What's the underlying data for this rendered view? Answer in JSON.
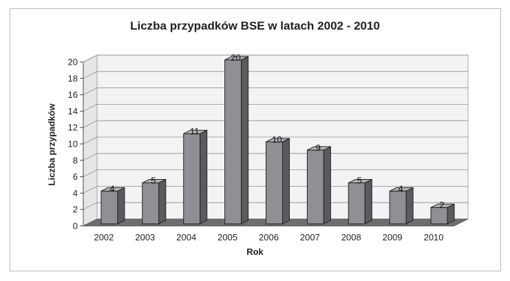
{
  "chart_data": {
    "type": "bar",
    "title": "Liczba przypadków BSE w latach 2002 - 2010",
    "xlabel": "Rok",
    "ylabel": "Liczba przypadków",
    "categories": [
      "2002",
      "2003",
      "2004",
      "2005",
      "2006",
      "2007",
      "2008",
      "2009",
      "2010"
    ],
    "values": [
      4,
      5,
      11,
      20,
      10,
      9,
      5,
      4,
      2
    ],
    "data_labels": [
      "4",
      "5",
      "11",
      "20",
      "10",
      "9",
      "5",
      "4",
      "2"
    ],
    "ylim": [
      0,
      20
    ],
    "yticks": [
      "0",
      "2",
      "4",
      "6",
      "8",
      "10",
      "12",
      "14",
      "16",
      "18",
      "20"
    ],
    "grid": true,
    "legend": "none",
    "colors": {
      "bar_front": "#8f8f95",
      "bar_side": "#5a5a60",
      "bar_top": "#b4b4ba",
      "wall": "#f3f3f3",
      "floor": "#6e6e6e",
      "grid": "#8a8a8a"
    }
  }
}
